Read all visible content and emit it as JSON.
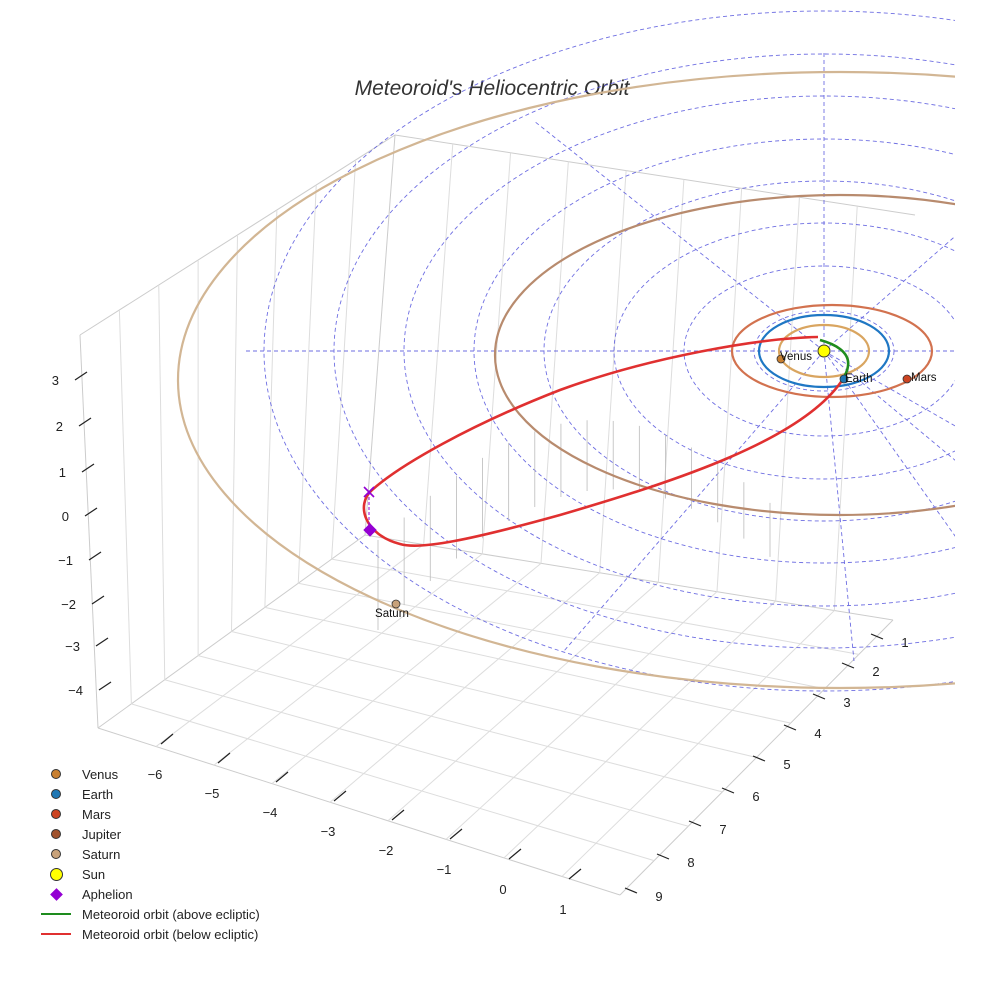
{
  "chart_data": {
    "type": "3d-orbit",
    "title": "Meteoroid's Heliocentric Orbit",
    "axes": {
      "x_ticks": [
        1,
        2,
        3,
        4,
        5,
        6,
        7,
        8,
        9
      ],
      "y_ticks": [
        -6,
        -5,
        -4,
        -3,
        -2,
        -1,
        0,
        1
      ],
      "z_ticks": [
        3,
        2,
        1,
        0,
        -1,
        -2,
        -3,
        -4
      ]
    },
    "grid": true,
    "ecliptic_reference_grid": "dashed concentric circles and radial lines",
    "bodies": [
      {
        "name": "Venus",
        "color": "#c87f30",
        "marker": "circle",
        "label": "Venus"
      },
      {
        "name": "Earth",
        "color": "#1f77b4",
        "marker": "circle",
        "label": "Earth"
      },
      {
        "name": "Mars",
        "color": "#cc4422",
        "marker": "circle",
        "label": "Mars"
      },
      {
        "name": "Jupiter",
        "color": "#a0522d",
        "marker": "circle",
        "label": ""
      },
      {
        "name": "Saturn",
        "color": "#c8a27a",
        "marker": "circle",
        "label": "Saturn"
      },
      {
        "name": "Sun",
        "color": "#ffff00",
        "marker": "circle",
        "label": ""
      }
    ],
    "orbit_colors": {
      "Venus": "#d9a560",
      "Earth": "#1f77c4",
      "Mars": "#d2724f",
      "Jupiter": "#b88b6e",
      "Saturn": "#d2b694"
    },
    "aphelion": {
      "name": "Aphelion",
      "color": "#9400d3",
      "marker": "diamond"
    },
    "meteoroid_orbit": [
      {
        "name": "Meteoroid orbit (above ecliptic)",
        "color": "#1e8c1e"
      },
      {
        "name": "Meteoroid orbit (below ecliptic)",
        "color": "#e03030"
      }
    ],
    "legend": {
      "position": "bottom-left",
      "items": [
        {
          "label": "Venus",
          "kind": "dot",
          "color": "#c87f30"
        },
        {
          "label": "Earth",
          "kind": "dot",
          "color": "#1f77b4"
        },
        {
          "label": "Mars",
          "kind": "dot",
          "color": "#cc4422"
        },
        {
          "label": "Jupiter",
          "kind": "dot",
          "color": "#a0522d"
        },
        {
          "label": "Saturn",
          "kind": "dot",
          "color": "#c8a27a"
        },
        {
          "label": "Sun",
          "kind": "sun",
          "color": "#ffff00"
        },
        {
          "label": "Aphelion",
          "kind": "diamond",
          "color": "#9400d3"
        },
        {
          "label": "Meteoroid orbit (above ecliptic)",
          "kind": "line",
          "color": "#1e8c1e"
        },
        {
          "label": "Meteoroid orbit (below ecliptic)",
          "kind": "line",
          "color": "#e03030"
        }
      ]
    }
  }
}
